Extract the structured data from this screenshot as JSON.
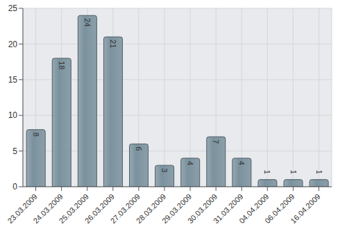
{
  "chart_data": {
    "type": "bar",
    "categories": [
      "23.03.2009",
      "24.03.2009",
      "25.03.2009",
      "26.03.2009",
      "27.03.2009",
      "28.03.2009",
      "29.03.2009",
      "30.03.2009",
      "31.03.2009",
      "04.04.2009",
      "06.04.2009",
      "16.04.2009"
    ],
    "values": [
      8,
      18,
      24,
      21,
      6,
      3,
      4,
      7,
      4,
      1,
      1,
      1
    ],
    "color": "#7b929e",
    "ylim": [
      0,
      25
    ],
    "yticks": [
      0,
      5,
      10,
      15,
      20,
      25
    ],
    "grid": true,
    "data_labels": true
  }
}
